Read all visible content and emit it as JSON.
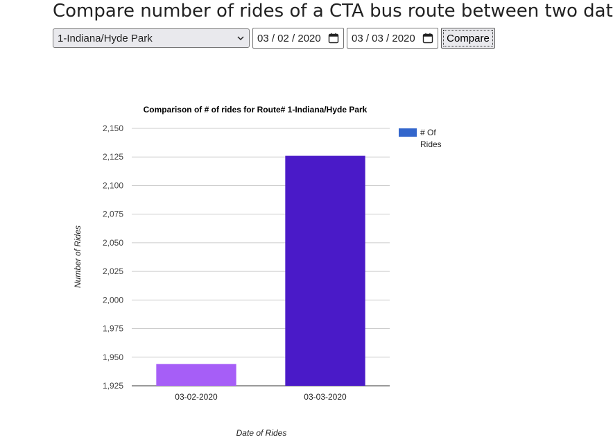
{
  "page": {
    "title": "Compare number of rides of a CTA bus route between two dates"
  },
  "controls": {
    "route": {
      "selected": "1-Indiana/Hyde Park"
    },
    "date1": {
      "value": "03 / 02 / 2020"
    },
    "date2": {
      "value": "03 / 03 / 2020"
    },
    "compare_label": "Compare"
  },
  "chart_data": {
    "type": "bar",
    "title": "Comparison of # of rides for Route# 1-Indiana/Hyde Park",
    "xlabel": "Date of Rides",
    "ylabel": "Number of Rides",
    "categories": [
      "03-02-2020",
      "03-03-2020"
    ],
    "values": [
      1944,
      2126
    ],
    "bar_colors": [
      "#a65ef7",
      "#4a1ac8"
    ],
    "legend": {
      "label": "# Of Rides",
      "color": "#3366cc",
      "placement": "right"
    },
    "ylim": [
      1925,
      2150
    ],
    "yticks": [
      1925,
      1950,
      1975,
      2000,
      2025,
      2050,
      2075,
      2100,
      2125,
      2150
    ],
    "ytick_labels": [
      "1,925",
      "1,950",
      "1,975",
      "2,000",
      "2,025",
      "2,050",
      "2,075",
      "2,100",
      "2,125",
      "2,150"
    ],
    "grid": true
  }
}
